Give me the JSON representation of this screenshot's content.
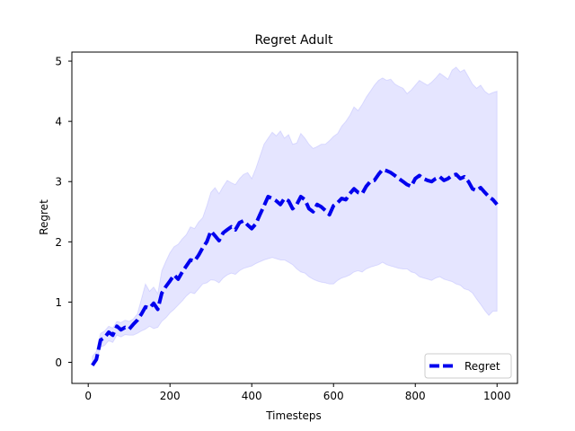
{
  "chart_data": {
    "type": "line",
    "title": "Regret Adult",
    "xlabel": "Timesteps",
    "ylabel": "Regret",
    "xlim": [
      -40,
      1050
    ],
    "ylim": [
      -0.35,
      5.15
    ],
    "xticks": [
      0,
      200,
      400,
      600,
      800,
      1000
    ],
    "yticks": [
      0,
      1,
      2,
      3,
      4,
      5
    ],
    "xtick_labels": [
      "0",
      "200",
      "400",
      "600",
      "800",
      "1000"
    ],
    "ytick_labels": [
      "0",
      "1",
      "2",
      "3",
      "4",
      "5"
    ],
    "grid": false,
    "legend_position": "lower right",
    "series": [
      {
        "name": "Regret",
        "color": "#0000ee",
        "line_style": "dashed",
        "x": [
          10,
          20,
          30,
          40,
          50,
          60,
          70,
          80,
          90,
          100,
          110,
          120,
          130,
          140,
          150,
          160,
          170,
          180,
          190,
          200,
          210,
          220,
          230,
          240,
          250,
          260,
          270,
          280,
          290,
          300,
          310,
          320,
          330,
          340,
          350,
          360,
          370,
          380,
          390,
          400,
          410,
          420,
          430,
          440,
          450,
          460,
          470,
          480,
          490,
          500,
          510,
          520,
          530,
          540,
          550,
          560,
          570,
          580,
          590,
          600,
          610,
          620,
          630,
          640,
          650,
          660,
          670,
          680,
          690,
          700,
          710,
          720,
          730,
          740,
          750,
          760,
          770,
          780,
          790,
          800,
          810,
          820,
          830,
          840,
          850,
          860,
          870,
          880,
          890,
          900,
          910,
          920,
          930,
          940,
          950,
          960,
          970,
          980,
          990,
          1000
        ],
        "values": [
          -0.05,
          0.05,
          0.37,
          0.41,
          0.5,
          0.45,
          0.6,
          0.54,
          0.58,
          0.55,
          0.63,
          0.7,
          0.8,
          0.92,
          0.9,
          0.98,
          0.88,
          1.15,
          1.26,
          1.35,
          1.45,
          1.38,
          1.5,
          1.6,
          1.7,
          1.68,
          1.78,
          1.9,
          2.0,
          2.18,
          2.1,
          2.02,
          2.15,
          2.2,
          2.25,
          2.2,
          2.32,
          2.35,
          2.28,
          2.22,
          2.3,
          2.45,
          2.6,
          2.75,
          2.72,
          2.68,
          2.62,
          2.72,
          2.68,
          2.55,
          2.62,
          2.75,
          2.7,
          2.55,
          2.5,
          2.62,
          2.58,
          2.52,
          2.45,
          2.6,
          2.65,
          2.72,
          2.7,
          2.8,
          2.88,
          2.82,
          2.8,
          2.92,
          3.0,
          3.02,
          3.12,
          3.2,
          3.18,
          3.15,
          3.1,
          3.05,
          3.0,
          2.95,
          2.92,
          3.05,
          3.1,
          3.05,
          3.02,
          3.0,
          3.05,
          3.08,
          3.02,
          3.05,
          3.1,
          3.12,
          3.05,
          3.08,
          3.0,
          2.88,
          2.85,
          2.9,
          2.82,
          2.75,
          2.7,
          2.62
        ],
        "lower": [
          -0.02,
          0.02,
          0.25,
          0.28,
          0.36,
          0.33,
          0.45,
          0.42,
          0.46,
          0.45,
          0.45,
          0.48,
          0.52,
          0.55,
          0.6,
          0.56,
          0.58,
          0.68,
          0.74,
          0.82,
          0.88,
          0.95,
          1.02,
          1.1,
          1.16,
          1.14,
          1.22,
          1.3,
          1.32,
          1.37,
          1.36,
          1.32,
          1.4,
          1.45,
          1.48,
          1.46,
          1.52,
          1.56,
          1.58,
          1.6,
          1.64,
          1.67,
          1.7,
          1.72,
          1.74,
          1.72,
          1.7,
          1.7,
          1.66,
          1.62,
          1.55,
          1.5,
          1.48,
          1.42,
          1.38,
          1.35,
          1.33,
          1.32,
          1.3,
          1.3,
          1.36,
          1.4,
          1.42,
          1.45,
          1.5,
          1.52,
          1.5,
          1.55,
          1.58,
          1.6,
          1.62,
          1.66,
          1.62,
          1.6,
          1.58,
          1.56,
          1.55,
          1.55,
          1.5,
          1.48,
          1.42,
          1.4,
          1.38,
          1.36,
          1.4,
          1.42,
          1.38,
          1.36,
          1.34,
          1.3,
          1.28,
          1.22,
          1.2,
          1.15,
          1.05,
          0.96,
          0.86,
          0.78,
          0.85,
          0.85
        ],
        "upper": [
          0.1,
          0.18,
          0.48,
          0.52,
          0.6,
          0.57,
          0.68,
          0.66,
          0.7,
          0.68,
          0.72,
          0.8,
          1.05,
          1.3,
          1.18,
          1.25,
          1.14,
          1.52,
          1.68,
          1.82,
          1.92,
          1.96,
          2.05,
          2.12,
          2.25,
          2.22,
          2.33,
          2.4,
          2.6,
          2.82,
          2.9,
          2.8,
          2.92,
          3.02,
          2.98,
          2.95,
          3.05,
          3.12,
          3.15,
          3.05,
          3.22,
          3.42,
          3.62,
          3.72,
          3.82,
          3.76,
          3.84,
          3.72,
          3.78,
          3.62,
          3.64,
          3.8,
          3.72,
          3.62,
          3.55,
          3.58,
          3.62,
          3.62,
          3.68,
          3.75,
          3.8,
          3.92,
          4.0,
          4.1,
          4.24,
          4.18,
          4.28,
          4.4,
          4.5,
          4.6,
          4.68,
          4.72,
          4.68,
          4.7,
          4.62,
          4.58,
          4.55,
          4.46,
          4.52,
          4.6,
          4.68,
          4.64,
          4.6,
          4.65,
          4.72,
          4.8,
          4.75,
          4.7,
          4.85,
          4.9,
          4.82,
          4.86,
          4.74,
          4.62,
          4.55,
          4.6,
          4.5,
          4.45,
          4.48,
          4.5
        ]
      }
    ]
  }
}
